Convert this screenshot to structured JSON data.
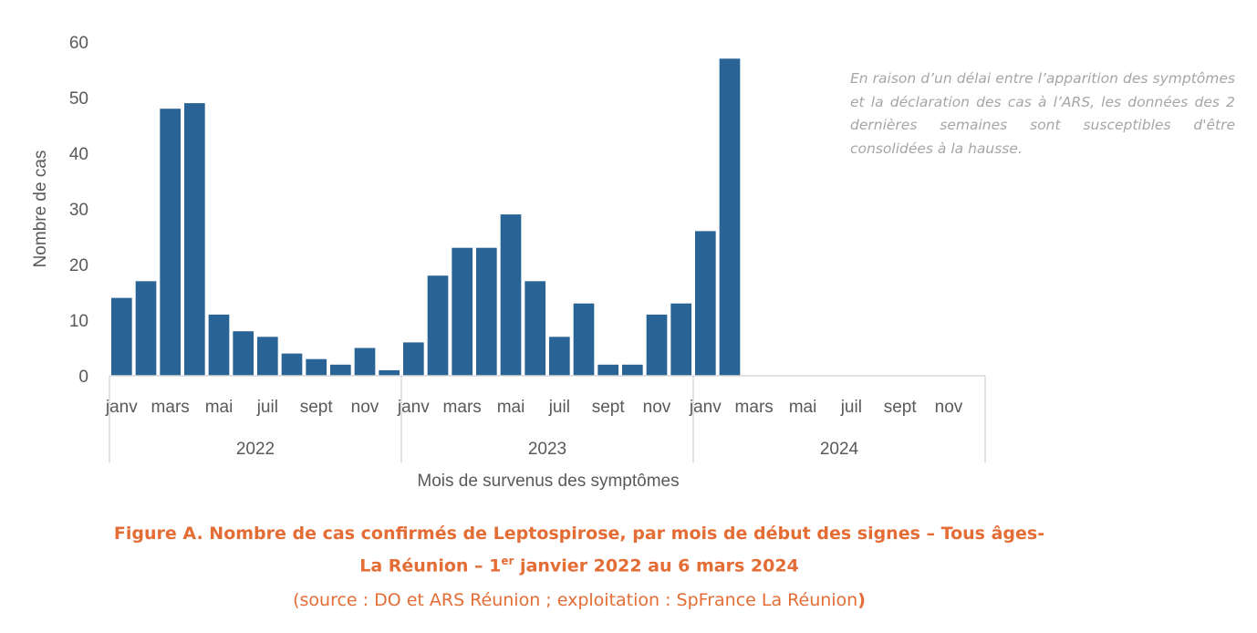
{
  "chart_data": {
    "type": "bar",
    "title": "Figure A. Nombre de cas confirmés de Leptospirose, par mois de début des signes – Tous âges- La Réunion – 1er janvier 2022 au 6 mars 2024",
    "xlabel": "Mois de survenus des symptômes",
    "ylabel": "Nombre de cas",
    "ylim": [
      0,
      60
    ],
    "yticks": [
      "0",
      "10",
      "20",
      "30",
      "40",
      "50",
      "60"
    ],
    "years": [
      "2022",
      "2023",
      "2024"
    ],
    "month_labels": [
      "janv",
      "",
      "mars",
      "",
      "mai",
      "",
      "juil",
      "",
      "sept",
      "",
      "nov",
      ""
    ],
    "values": [
      14,
      17,
      48,
      49,
      11,
      8,
      7,
      4,
      3,
      2,
      5,
      1,
      6,
      18,
      23,
      23,
      29,
      17,
      7,
      13,
      2,
      2,
      11,
      13,
      26,
      57,
      null,
      null,
      null,
      null,
      null,
      null,
      null,
      null,
      null,
      null
    ],
    "bar_color": "#2a6496",
    "grid": false
  },
  "note": "En raison d’un délai entre l’apparition des symptômes et la déclaration des cas à l’ARS, les données des 2 dernières semaines sont susceptibles d'être consolidées à la hausse.",
  "caption": {
    "line1": "Figure A. Nombre de cas confirmés de Leptospirose, par mois de début des signes – Tous âges-",
    "line2_a": "La Réunion – 1",
    "line2_sup": "er",
    "line2_b": " janvier 2022 au 6 mars 2024",
    "source_a": "(source : DO et ARS Réunion ; exploitation : SpFrance La Réunion",
    "source_b": ")"
  }
}
